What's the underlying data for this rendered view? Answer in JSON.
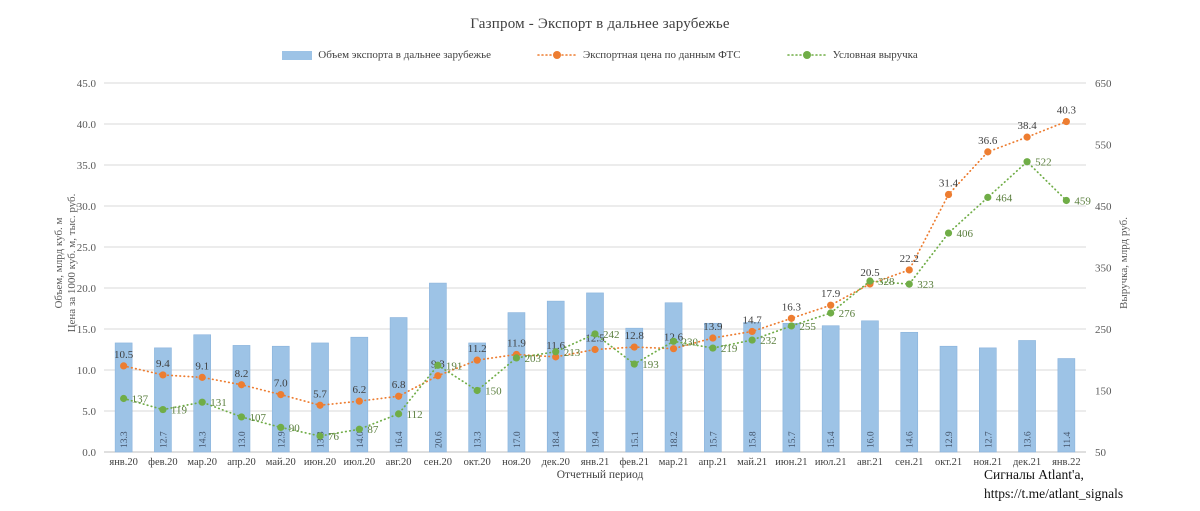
{
  "chart_data": {
    "type": "combo-bar-line",
    "title": "Газпром - Экспорт в дальнее зарубежье",
    "categories": [
      "янв.20",
      "фев.20",
      "мар.20",
      "апр.20",
      "май.20",
      "июн.20",
      "июл.20",
      "авг.20",
      "сен.20",
      "окт.20",
      "ноя.20",
      "дек.20",
      "янв.21",
      "фев.21",
      "мар.21",
      "апр.21",
      "май.21",
      "июн.21",
      "июл.21",
      "авг.21",
      "сен.21",
      "окт.21",
      "ноя.21",
      "дек.21",
      "янв.22"
    ],
    "series": [
      {
        "name": "Объем экспорта в дальнее зарубежье",
        "type": "bar",
        "axis": "left",
        "color": "#9DC3E6",
        "label_color": "#44546A",
        "values": [
          13.3,
          12.7,
          14.3,
          13.0,
          12.9,
          13.3,
          14.0,
          16.4,
          20.6,
          13.3,
          17.0,
          18.4,
          19.4,
          15.1,
          18.2,
          15.7,
          15.8,
          15.7,
          15.4,
          16.0,
          14.6,
          12.9,
          12.7,
          13.6,
          11.4
        ]
      },
      {
        "name": "Экспортная цена по данным ФТС",
        "type": "line",
        "axis": "left",
        "color": "#ED7D31",
        "label_color": "#3F3F3F",
        "values": [
          10.5,
          9.4,
          9.1,
          8.2,
          7.0,
          5.7,
          6.2,
          6.8,
          9.3,
          11.2,
          11.9,
          11.6,
          12.5,
          12.8,
          12.6,
          13.9,
          14.7,
          16.3,
          17.9,
          20.5,
          22.2,
          31.4,
          36.6,
          38.4,
          40.3
        ]
      },
      {
        "name": "Условная выручка",
        "type": "line",
        "axis": "right",
        "color": "#70AD47",
        "label_color": "#5A7E3D",
        "values": [
          137,
          119,
          131,
          107,
          90,
          76,
          87,
          112,
          191,
          150,
          203,
          213,
          242,
          193,
          230,
          219,
          232,
          255,
          276,
          328,
          323,
          406,
          464,
          522,
          459
        ]
      }
    ],
    "left_axis": {
      "title_line1": "Объем, млрд куб. м",
      "title_line2": "Цена за 1000 куб. м, тыс. руб.",
      "min": 0,
      "max": 45,
      "step": 5
    },
    "right_axis": {
      "title": "Выручка, млрд руб.",
      "min": 50,
      "max": 650,
      "step": 100
    },
    "xlabel": "Отчетный период",
    "grid": true,
    "legend_position": "top",
    "colors": {
      "grid": "#D9D9D9",
      "axis": "#BFBFBF",
      "tick_text": "#595959"
    }
  },
  "annotation": {
    "line1": "Сигналы Atlant'a,",
    "line2": "https://t.me/atlant_signals"
  }
}
